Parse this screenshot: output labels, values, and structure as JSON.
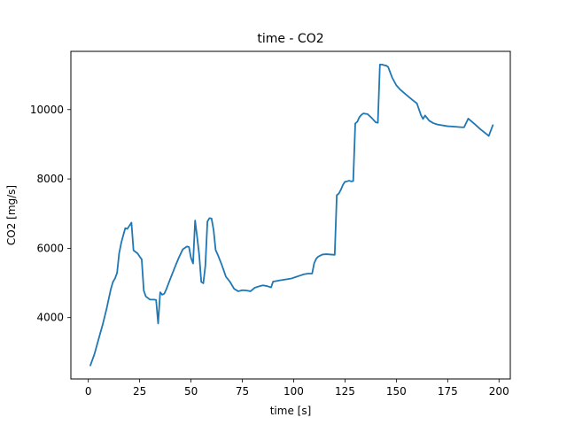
{
  "chart_data": {
    "type": "line",
    "title": "time - CO2",
    "xlabel": "time [s]",
    "ylabel": "CO2 [mg/s]",
    "xlim": [
      -8.5,
      205.5
    ],
    "ylim": [
      2230,
      11680
    ],
    "xticks": [
      0,
      25,
      50,
      75,
      100,
      125,
      150,
      175,
      200
    ],
    "yticks": [
      4000,
      6000,
      8000,
      10000
    ],
    "grid": false,
    "series": [
      {
        "color": "#1f77b4",
        "x": [
          1,
          3,
          5,
          7,
          9,
          10,
          11,
          12,
          13,
          14,
          15,
          16,
          17,
          18,
          19,
          20,
          21,
          22,
          24,
          25,
          26,
          27,
          28,
          30,
          32,
          33,
          34,
          35,
          36,
          37,
          38,
          40,
          42,
          44,
          46,
          48,
          49,
          50,
          51,
          52,
          53,
          54,
          55,
          56,
          57,
          58,
          59,
          60,
          61,
          62,
          63,
          65,
          67,
          69,
          71,
          73,
          75,
          77,
          79,
          81,
          83,
          85,
          87,
          89,
          90,
          91,
          93,
          95,
          97,
          99,
          101,
          103,
          105,
          107,
          109,
          110,
          111,
          112,
          114,
          116,
          118,
          120,
          121,
          122,
          123,
          124,
          125,
          126,
          127,
          128,
          129,
          130,
          131,
          132,
          133,
          134,
          136,
          138,
          140,
          141,
          142,
          143,
          144,
          145,
          146,
          148,
          150,
          152,
          154,
          156,
          158,
          160,
          162,
          163,
          164,
          166,
          168,
          170,
          175,
          178,
          182,
          183,
          185,
          188,
          191,
          194,
          195,
          197
        ],
        "values": [
          2620,
          2950,
          3380,
          3800,
          4280,
          4560,
          4830,
          5030,
          5130,
          5290,
          5850,
          6150,
          6370,
          6580,
          6560,
          6650,
          6740,
          5940,
          5850,
          5760,
          5680,
          4780,
          4610,
          4520,
          4520,
          4510,
          3830,
          4730,
          4660,
          4690,
          4820,
          5130,
          5430,
          5720,
          5970,
          6050,
          6040,
          5720,
          5560,
          6800,
          6320,
          5810,
          5030,
          4990,
          5500,
          6770,
          6870,
          6860,
          6530,
          5950,
          5820,
          5520,
          5180,
          5030,
          4830,
          4760,
          4790,
          4780,
          4760,
          4860,
          4900,
          4930,
          4910,
          4870,
          5040,
          5050,
          5070,
          5090,
          5110,
          5130,
          5170,
          5210,
          5250,
          5270,
          5270,
          5570,
          5700,
          5760,
          5820,
          5830,
          5820,
          5810,
          7530,
          7580,
          7690,
          7830,
          7920,
          7930,
          7950,
          7930,
          7940,
          9600,
          9650,
          9780,
          9850,
          9890,
          9870,
          9760,
          9630,
          9620,
          11300,
          11300,
          11280,
          11270,
          11230,
          10920,
          10700,
          10570,
          10470,
          10370,
          10270,
          10180,
          9840,
          9730,
          9830,
          9680,
          9610,
          9570,
          9520,
          9510,
          9490,
          9490,
          9740,
          9590,
          9430,
          9290,
          9240,
          9550
        ]
      }
    ]
  }
}
